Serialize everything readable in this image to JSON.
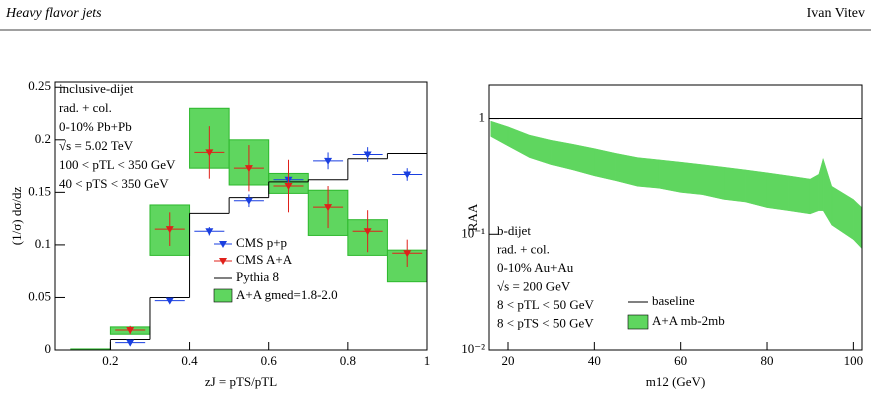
{
  "header": {
    "title": "Heavy flavor jets",
    "author": "Ivan Vitev"
  },
  "chart_data": [
    {
      "type": "step",
      "y_label": "(1/σ) dσ/dz",
      "x_label": "zJ = pTS/pTL",
      "annotations": [
        "inclusive-dijet",
        "rad. + col.",
        "0-10% Pb+Pb",
        "√s = 5.02 TeV",
        "100 < pTL < 350 GeV",
        "40 < pTS < 350 GeV"
      ],
      "bins": [
        0.1,
        0.2,
        0.3,
        0.4,
        0.5,
        0.6,
        0.7,
        0.8,
        0.9,
        1.0
      ],
      "band": {
        "name": "A+A gmed=1.8-2.0",
        "color": "#5fd65f",
        "lower": [
          0,
          0.015,
          0.09,
          0.173,
          0.157,
          0.149,
          0.109,
          0.09,
          0.065
        ],
        "upper": [
          0.001,
          0.022,
          0.138,
          0.23,
          0.2,
          0.168,
          0.152,
          0.124,
          0.095
        ]
      },
      "steps": {
        "name": "Pythia 8",
        "color": "#000000",
        "values": [
          0,
          0.01,
          0.05,
          0.13,
          0.145,
          0.16,
          0.162,
          0.182,
          0.187
        ]
      },
      "points": [
        {
          "name": "CMS p+p",
          "color": "#1a3fe0",
          "x": [
            0.25,
            0.35,
            0.45,
            0.55,
            0.65,
            0.75,
            0.85,
            0.95
          ],
          "values": [
            0.007,
            0.047,
            0.113,
            0.142,
            0.162,
            0.18,
            0.186,
            0.167
          ],
          "errors": [
            0.003,
            0.002,
            0.004,
            0.006,
            0.01,
            0.008,
            0.007,
            0.006
          ]
        },
        {
          "name": "CMS A+A",
          "color": "#e0201a",
          "x": [
            0.25,
            0.35,
            0.45,
            0.55,
            0.65,
            0.75,
            0.85,
            0.95
          ],
          "values": [
            0.019,
            0.115,
            0.188,
            0.173,
            0.156,
            0.136,
            0.113,
            0.092
          ],
          "errors": [
            0.004,
            0.016,
            0.025,
            0.022,
            0.025,
            0.02,
            0.02,
            0.013
          ]
        }
      ],
      "xlim": [
        0.06,
        1
      ],
      "xticks": [
        0.2,
        0.4,
        0.6,
        0.8,
        1
      ],
      "ylim": [
        0,
        0.255
      ],
      "yticks": [
        0,
        0.05,
        0.1,
        0.15,
        0.2,
        0.25
      ]
    },
    {
      "type": "band",
      "y_label": "RAA",
      "x_label": "m12 (GeV)",
      "log_y": true,
      "annotations": [
        "b-dijet",
        "rad. + col.",
        "0-10% Au+Au",
        "√s = 200 GeV",
        "8 < pTL < 50 GeV",
        "8 < pTS < 50 GeV"
      ],
      "baseline": {
        "name": "baseline",
        "value": 1,
        "color": "#000000"
      },
      "band": {
        "name": "A+A mb-2mb",
        "color": "#5fd65f",
        "x": [
          16,
          20,
          25,
          30,
          35,
          40,
          45,
          50,
          55,
          60,
          65,
          70,
          75,
          80,
          85,
          90,
          92,
          93,
          95,
          100,
          102
        ],
        "upper": [
          0.95,
          0.85,
          0.72,
          0.65,
          0.6,
          0.55,
          0.5,
          0.46,
          0.44,
          0.42,
          0.4,
          0.38,
          0.36,
          0.34,
          0.32,
          0.3,
          0.33,
          0.45,
          0.26,
          0.2,
          0.17
        ],
        "lower": [
          0.7,
          0.58,
          0.46,
          0.4,
          0.36,
          0.32,
          0.29,
          0.26,
          0.25,
          0.23,
          0.22,
          0.2,
          0.19,
          0.17,
          0.16,
          0.15,
          0.16,
          0.16,
          0.12,
          0.09,
          0.075
        ]
      },
      "xlim": [
        15.6,
        102
      ],
      "xticks": [
        20,
        40,
        60,
        80,
        100
      ],
      "ylim": [
        0.01,
        1.95
      ],
      "yticks": [
        {
          "value": 0.01,
          "label": "10⁻²"
        },
        {
          "value": 0.1,
          "label": "10⁻¹"
        },
        {
          "value": 1,
          "label": "1"
        }
      ]
    }
  ]
}
